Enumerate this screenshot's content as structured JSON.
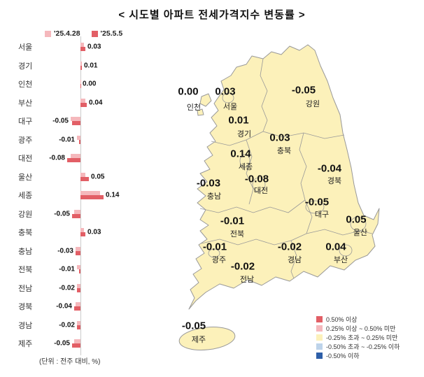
{
  "title": "< 시도별 아파트 전세가격지수 변동률 >",
  "bar_chart": {
    "legend": [
      {
        "label": "'25.4.28",
        "color": "#f5b8bc"
      },
      {
        "label": "'25.5.5",
        "color": "#e25f66"
      }
    ],
    "unit_note": "(단위 : 전주 대비, %)"
  },
  "chart_data": {
    "type": "bar",
    "orientation": "horizontal",
    "title": "시도별 아파트 전세가격지수 변동률",
    "unit": "전주 대비, %",
    "categories": [
      "서울",
      "경기",
      "인천",
      "부산",
      "대구",
      "광주",
      "대전",
      "울산",
      "세종",
      "강원",
      "충북",
      "충남",
      "전북",
      "전남",
      "경북",
      "경남",
      "제주"
    ],
    "series": [
      {
        "name": "'25.4.28",
        "values": [
          0.02,
          0.01,
          0.0,
          0.03,
          -0.06,
          -0.02,
          -0.06,
          0.03,
          0.12,
          -0.04,
          0.02,
          -0.03,
          -0.02,
          -0.02,
          -0.03,
          -0.02,
          -0.04
        ]
      },
      {
        "name": "'25.5.5",
        "values": [
          0.03,
          0.01,
          0.0,
          0.04,
          -0.05,
          -0.01,
          -0.08,
          0.05,
          0.14,
          -0.05,
          0.03,
          -0.03,
          -0.01,
          -0.02,
          -0.04,
          -0.02,
          -0.05
        ]
      }
    ],
    "value_label_series": "'25.5.5",
    "legend_position": "top"
  },
  "map": {
    "land_color": "#fcf1ba",
    "border_color": "#999999",
    "regions": [
      {
        "name": "인천",
        "value": 0.0
      },
      {
        "name": "서울",
        "value": 0.03
      },
      {
        "name": "강원",
        "value": -0.05
      },
      {
        "name": "경기",
        "value": 0.01
      },
      {
        "name": "충북",
        "value": 0.03
      },
      {
        "name": "세종",
        "value": 0.14
      },
      {
        "name": "대전",
        "value": -0.08
      },
      {
        "name": "충남",
        "value": -0.03
      },
      {
        "name": "경북",
        "value": -0.04
      },
      {
        "name": "대구",
        "value": -0.05
      },
      {
        "name": "전북",
        "value": -0.01
      },
      {
        "name": "울산",
        "value": 0.05
      },
      {
        "name": "광주",
        "value": -0.01
      },
      {
        "name": "경남",
        "value": -0.02
      },
      {
        "name": "부산",
        "value": 0.04
      },
      {
        "name": "전남",
        "value": -0.02
      },
      {
        "name": "제주",
        "value": -0.05
      }
    ],
    "legend": [
      {
        "color": "#e25f66",
        "label": "0.50% 이상"
      },
      {
        "color": "#f5b8bc",
        "label": "0.25% 이상 ~ 0.50% 미만"
      },
      {
        "color": "#fcf1ba",
        "label": "-0.25% 초과 ~ 0.25% 미만"
      },
      {
        "color": "#bdd3ea",
        "label": "-0.50% 초과 ~ -0.25% 이하"
      },
      {
        "color": "#2e5fa8",
        "label": "-0.50% 이하"
      }
    ]
  }
}
